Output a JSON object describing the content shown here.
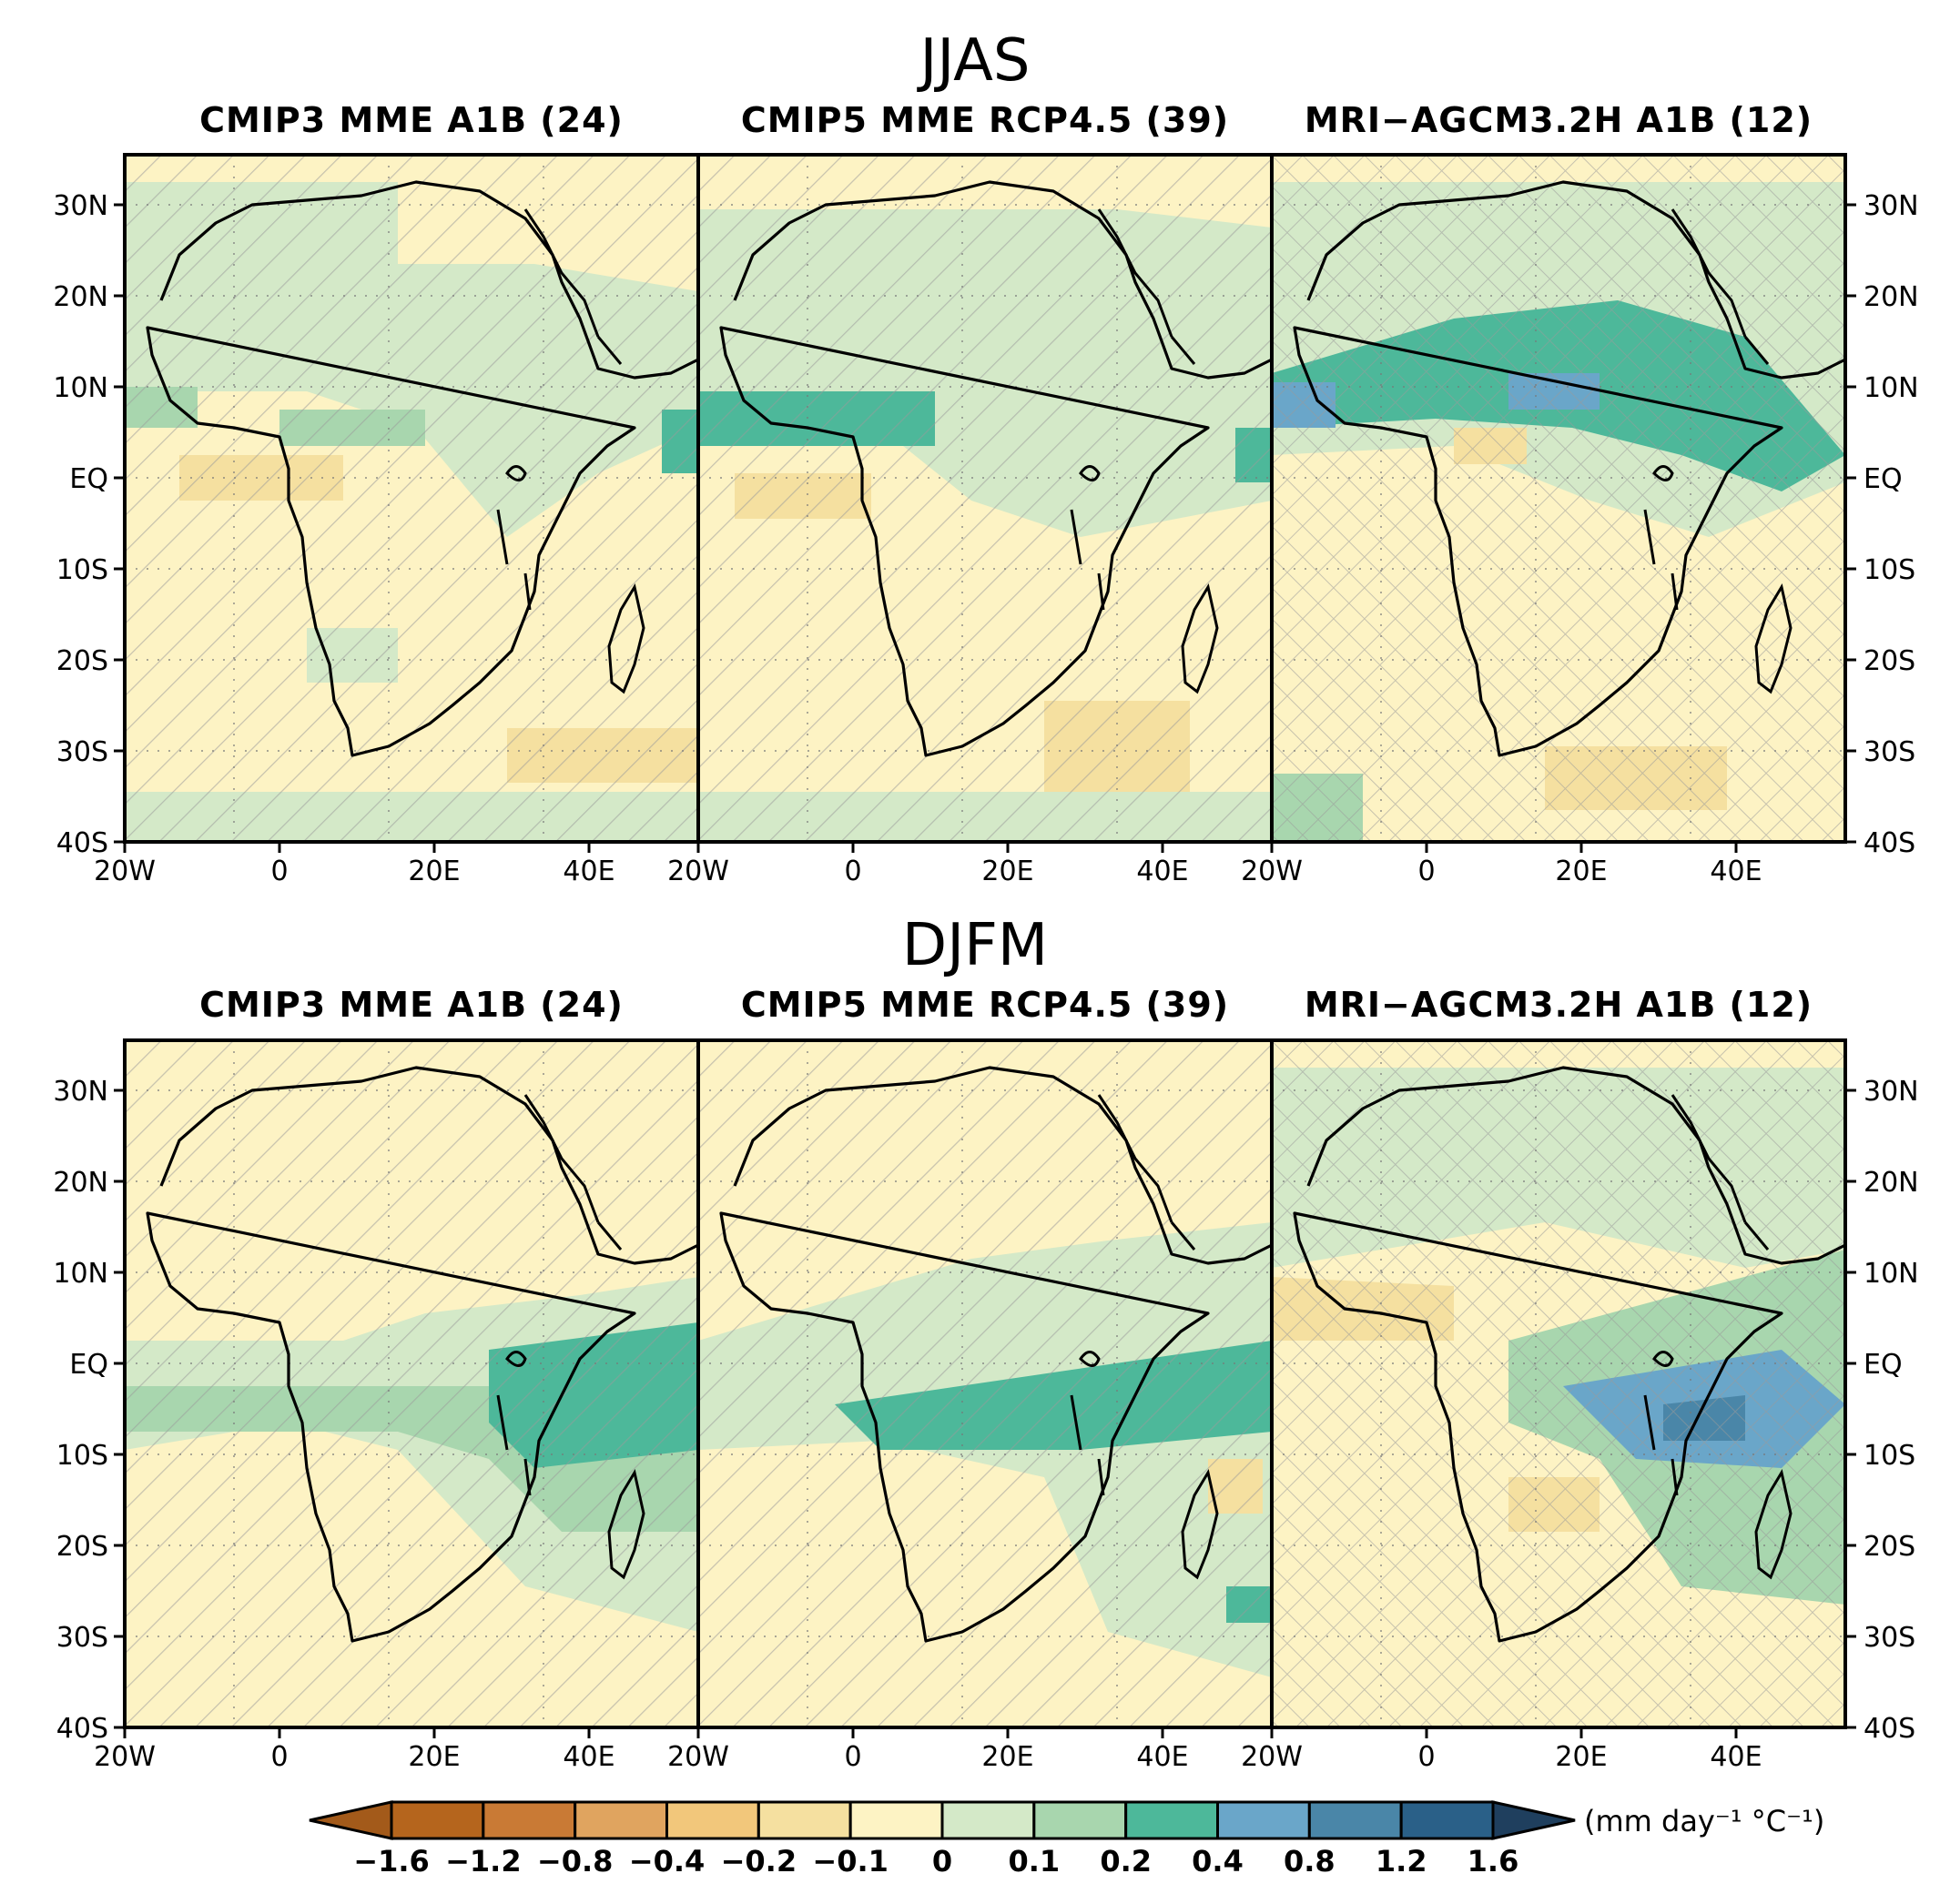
{
  "rows": [
    {
      "season": "JJAS",
      "panels": [
        {
          "title": "CMIP3 MME A1B (24)",
          "base": "#fdf3c4",
          "hatch": "diag"
        },
        {
          "title": "CMIP5 MME RCP4.5 (39)",
          "base": "#fdf3c4",
          "hatch": "diag"
        },
        {
          "title": "MRI−AGCM3.2H A1B (12)",
          "base": "#fdf3c4",
          "hatch": "cross"
        }
      ]
    },
    {
      "season": "DJFM",
      "panels": [
        {
          "title": "CMIP3 MME A1B (24)",
          "base": "#fdf3c4",
          "hatch": "diag"
        },
        {
          "title": "CMIP5 MME RCP4.5 (39)",
          "base": "#fdf3c4",
          "hatch": "diag"
        },
        {
          "title": "MRI−AGCM3.2H A1B (12)",
          "base": "#fdf3c4",
          "hatch": "cross"
        }
      ]
    }
  ],
  "lat_ticks": [
    "30N",
    "20N",
    "10N",
    "EQ",
    "10S",
    "20S",
    "30S",
    "40S"
  ],
  "lon_ticks": [
    "20W",
    "0",
    "20E",
    "40E"
  ],
  "colorbar": {
    "labels": [
      "−1.6",
      "−1.2",
      "−0.8",
      "−0.4",
      "−0.2",
      "−0.1",
      "0",
      "0.1",
      "0.2",
      "0.4",
      "0.8",
      "1.2",
      "1.6"
    ],
    "colors": [
      "#b5651d",
      "#c97a35",
      "#e0a45f",
      "#f2c77b",
      "#f5e0a0",
      "#fdf3c4",
      "#d4e9c8",
      "#a8d6ae",
      "#4db89a",
      "#6aa6c9",
      "#4a86a8",
      "#2a6088"
    ],
    "left_end_color": "#a35a1a",
    "right_end_color": "#1f3f5e",
    "unit_text": "(mm day⁻¹ °C⁻¹)"
  }
}
